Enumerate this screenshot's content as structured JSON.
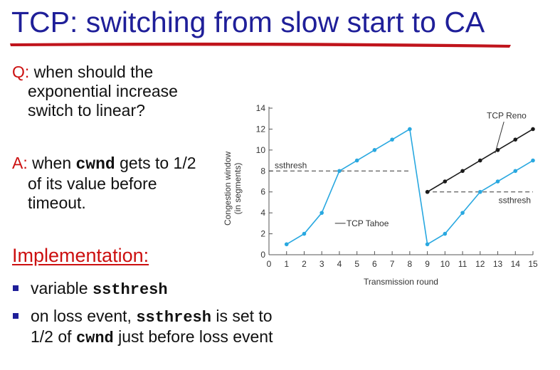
{
  "slide": {
    "title": "TCP: switching from slow start to CA",
    "question_label": "Q:",
    "question_text": " when should the exponential increase switch to linear?",
    "answer_label": "A:",
    "answer_pre": " when ",
    "answer_code": "cwnd",
    "answer_post": " gets to 1/2 of its value before timeout.",
    "implementation_heading": "Implementation:",
    "bullet1_pre": "variable ",
    "bullet1_code": "ssthresh",
    "bullet2_pre": "on loss event, ",
    "bullet2_code1": "ssthresh",
    "bullet2_mid": " is set to 1/2 of ",
    "bullet2_code2": "cwnd",
    "bullet2_post": "  just before loss event"
  },
  "colors": {
    "title": "#1f1f99",
    "accent_red": "#cc1010",
    "tahoe": "#29a8e0",
    "reno": "#1a1a1a",
    "axis": "#555555"
  },
  "chart_data": {
    "type": "line",
    "xlabel": "Transmission round",
    "ylabel_line1": "Congestion window",
    "ylabel_line2": "(in segments)",
    "xlim": [
      0,
      15
    ],
    "ylim": [
      0,
      14
    ],
    "xticks": [
      0,
      1,
      2,
      3,
      4,
      5,
      6,
      7,
      8,
      9,
      10,
      11,
      12,
      13,
      14,
      15
    ],
    "yticks": [
      0,
      2,
      4,
      6,
      8,
      10,
      12,
      14
    ],
    "series": [
      {
        "name": "TCP Tahoe",
        "x": [
          1,
          2,
          3,
          4,
          5,
          6,
          7,
          8,
          9,
          10,
          11,
          12,
          13,
          14,
          15
        ],
        "y": [
          1,
          2,
          4,
          8,
          9,
          10,
          11,
          12,
          1,
          2,
          4,
          6,
          7,
          8,
          9
        ]
      },
      {
        "name": "TCP Reno",
        "x": [
          9,
          10,
          11,
          12,
          13,
          14,
          15
        ],
        "y": [
          6,
          7,
          8,
          9,
          10,
          11,
          12
        ]
      }
    ],
    "thresholds": [
      {
        "label": "ssthresh",
        "x_start": 0,
        "x_end": 8,
        "y": 8
      },
      {
        "label": "ssthresh",
        "x_start": 8.9,
        "x_end": 15,
        "y": 6
      }
    ]
  }
}
